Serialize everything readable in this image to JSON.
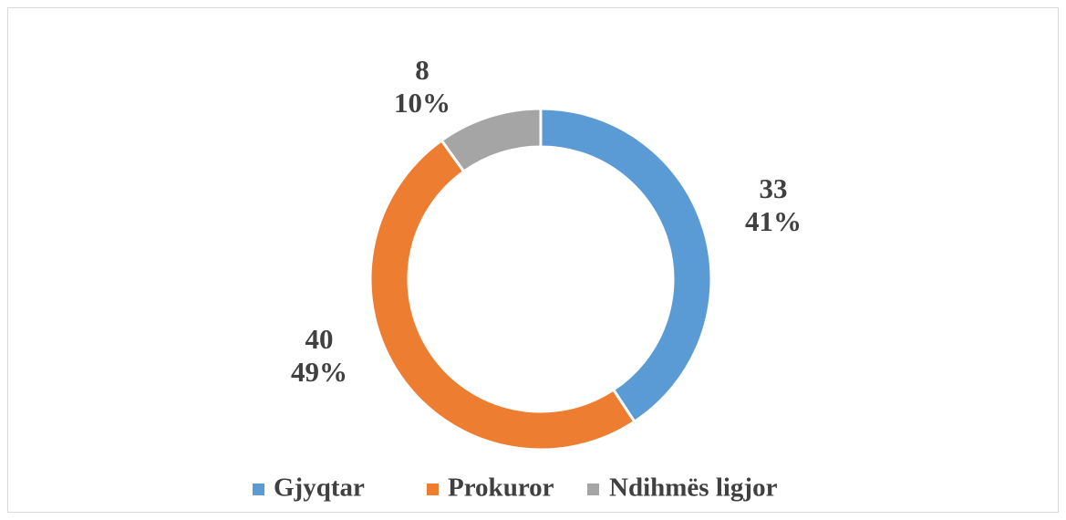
{
  "chart_data": {
    "type": "donut",
    "categories": [
      "Gjyqtar",
      "Prokuror",
      "Ndihmës ligjor"
    ],
    "values": [
      33,
      40,
      8
    ],
    "percents": [
      41,
      49,
      10
    ],
    "percent_labels": [
      "41%",
      "49%",
      "10%"
    ],
    "colors": [
      "#5b9bd5",
      "#ed7d31",
      "#a5a5a5"
    ],
    "legend": "bottom"
  }
}
